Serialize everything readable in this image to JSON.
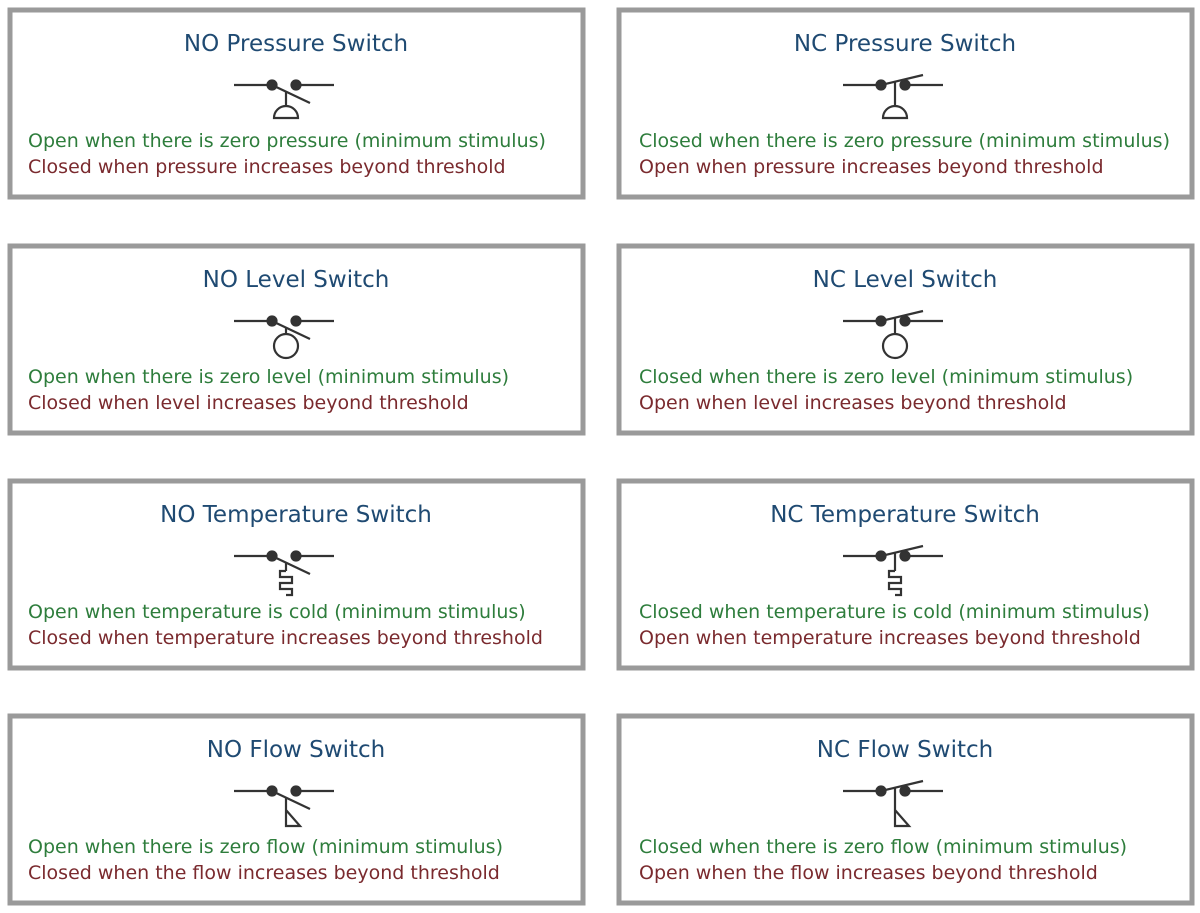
{
  "cards": [
    {
      "title": "NO Pressure Switch",
      "lines": [
        "Open when there is zero pressure (minimum stimulus)",
        "Closed when pressure increases beyond threshold"
      ]
    },
    {
      "title": "NC Pressure Switch",
      "lines": [
        "Closed when there is zero pressure (minimum stimulus)",
        "Open when pressure increases beyond threshold"
      ]
    },
    {
      "title": "NO Level Switch",
      "lines": [
        "Open when there is zero level (minimum stimulus)",
        "Closed when level increases beyond threshold"
      ]
    },
    {
      "title": "NC Level Switch",
      "lines": [
        "Closed when there is zero level (minimum stimulus)",
        "Open when level increases beyond threshold"
      ]
    },
    {
      "title": "NO Temperature Switch",
      "lines": [
        "Open when temperature is cold (minimum stimulus)",
        "Closed when temperature increases beyond threshold"
      ]
    },
    {
      "title": "NC Temperature Switch",
      "lines": [
        "Closed when temperature is cold (minimum stimulus)",
        "Open when temperature increases beyond threshold"
      ]
    },
    {
      "title": "NO Flow Switch",
      "lines": [
        "Open when there is zero flow (minimum stimulus)",
        "Closed when the flow increases beyond threshold"
      ]
    },
    {
      "title": "NC Flow Switch",
      "lines": [
        "Closed when there is zero flow (minimum stimulus)",
        "Open when the flow increases beyond threshold"
      ]
    }
  ]
}
